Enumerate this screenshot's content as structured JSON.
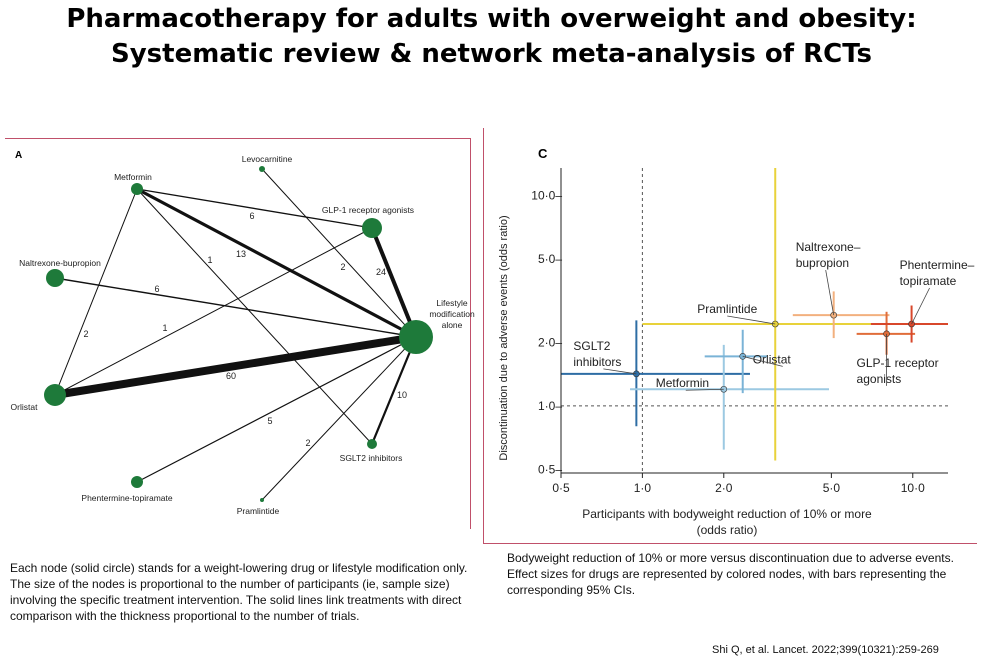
{
  "slide": {
    "title_line1": "Pharmacotherapy for adults with overweight and obesity:",
    "title_line2": "Systematic review & network meta-analysis of RCTs",
    "caption_left": "Each node (solid circle) stands for a weight-lowering drug or lifestyle modification only. The size of the nodes is proportional to the number of participants (ie, sample size) involving the specific treatment intervention. The solid lines link treatments with direct comparison with the thickness proportional to the number of trials.",
    "caption_right": "Bodyweight reduction of 10% or more versus discontinuation due to adverse events. Effect sizes for drugs are represented by colored nodes, with bars representing the corresponding 95% CIs.",
    "citation": "Shi Q, et al. Lancet. 2022;399(10321):259-269",
    "frame_color": "#c0506a"
  },
  "panel_a": {
    "label": "A",
    "nodes": [
      {
        "id": "metformin",
        "label": "Metformin"
      },
      {
        "id": "levocarnitine",
        "label": "Levocarnitine"
      },
      {
        "id": "glp1",
        "label": "GLP-1 receptor agonists"
      },
      {
        "id": "naltrexone",
        "label": "Naltrexone-bupropion"
      },
      {
        "id": "lifestyle",
        "label_lines": [
          "Lifestyle",
          "modification",
          "alone"
        ]
      },
      {
        "id": "orlistat",
        "label": "Orlistat"
      },
      {
        "id": "sglt2",
        "label": "SGLT2 inhibitors"
      },
      {
        "id": "phentermine",
        "label": "Phentermine-topiramate"
      },
      {
        "id": "pramlintide",
        "label": "Pramlintide"
      }
    ],
    "edges": [
      {
        "from": "metformin",
        "to": "glp1",
        "trials": "6"
      },
      {
        "from": "metformin",
        "to": "lifestyle",
        "trials": "13"
      },
      {
        "from": "metformin",
        "to": "sglt2",
        "trials": "1"
      },
      {
        "from": "metformin",
        "to": "orlistat",
        "trials": "2"
      },
      {
        "from": "levocarnitine",
        "to": "lifestyle",
        "trials": "2"
      },
      {
        "from": "glp1",
        "to": "lifestyle",
        "trials": "24"
      },
      {
        "from": "glp1",
        "to": "orlistat",
        "trials": "1"
      },
      {
        "from": "naltrexone",
        "to": "lifestyle",
        "trials": "6"
      },
      {
        "from": "orlistat",
        "to": "lifestyle",
        "trials": "60"
      },
      {
        "from": "sglt2",
        "to": "lifestyle",
        "trials": "10"
      },
      {
        "from": "phentermine",
        "to": "lifestyle",
        "trials": "5"
      },
      {
        "from": "pramlintide",
        "to": "lifestyle",
        "trials": "2"
      }
    ],
    "node_color": "#1e7a3a"
  },
  "chart_data": {
    "type": "scatter",
    "panel_label": "C",
    "xlabel_line1": "Participants with bodyweight reduction of 10% or more",
    "xlabel_line2": "(odds ratio)",
    "ylabel": "Discontinuation due to adverse events (odds ratio)",
    "x_scale": "log",
    "y_scale": "log",
    "xlim": [
      0.5,
      13.5
    ],
    "ylim": [
      0.48,
      13.5
    ],
    "x_ticks": [
      0.5,
      1.0,
      2.0,
      5.0,
      10.0
    ],
    "x_tick_labels": [
      "0·5",
      "1·0",
      "2·0",
      "5·0",
      "10·0"
    ],
    "y_ticks": [
      0.5,
      1.0,
      2.0,
      5.0,
      10.0
    ],
    "y_tick_labels": [
      "0·5–",
      "1·0–",
      "2·0–",
      "5·0–",
      "10·0–"
    ],
    "reference_x": 1.0,
    "reference_y": 1.0,
    "series": [
      {
        "name": "SGLT2 inhibitors",
        "label_lines": [
          "SGLT2",
          "inhibitors"
        ],
        "x": 0.95,
        "y": 1.42,
        "x_ci": [
          0.28,
          2.5
        ],
        "y_ci": [
          0.8,
          2.55
        ],
        "color": "#2e6da4"
      },
      {
        "name": "Metformin",
        "label_lines": [
          "Metformin"
        ],
        "x": 2.0,
        "y": 1.2,
        "x_ci": [
          0.9,
          4.9
        ],
        "y_ci": [
          0.62,
          1.95
        ],
        "color": "#9cc9e2"
      },
      {
        "name": "Orlistat",
        "label_lines": [
          "Orlistat"
        ],
        "x": 2.35,
        "y": 1.72,
        "x_ci": [
          1.7,
          2.9
        ],
        "y_ci": [
          1.15,
          2.3
        ],
        "color": "#7ab3d6"
      },
      {
        "name": "Pramlintide",
        "label_lines": [
          "Pramlintide"
        ],
        "x": 3.1,
        "y": 2.45,
        "x_ci": [
          1.0,
          30
        ],
        "y_ci": [
          0.55,
          30
        ],
        "color": "#e8d23a"
      },
      {
        "name": "Naltrexone–bupropion",
        "label_lines": [
          "Naltrexone–",
          "bupropion"
        ],
        "x": 5.1,
        "y": 2.7,
        "x_ci": [
          3.6,
          8.2
        ],
        "y_ci": [
          2.1,
          3.5
        ],
        "color": "#f2b07e"
      },
      {
        "name": "GLP-1 receptor agonists",
        "label_lines": [
          "GLP-1 receptor",
          "agonists"
        ],
        "x": 8.0,
        "y": 2.2,
        "x_ci": [
          6.2,
          10.2
        ],
        "y_ci": [
          1.75,
          2.8
        ],
        "color": "#e06d3a"
      },
      {
        "name": "Phentermine–topiramate",
        "label_lines": [
          "Phentermine–",
          "topiramate"
        ],
        "x": 9.9,
        "y": 2.45,
        "x_ci": [
          7.0,
          15.0
        ],
        "y_ci": [
          2.0,
          3.0
        ],
        "color": "#d8472b"
      }
    ]
  }
}
